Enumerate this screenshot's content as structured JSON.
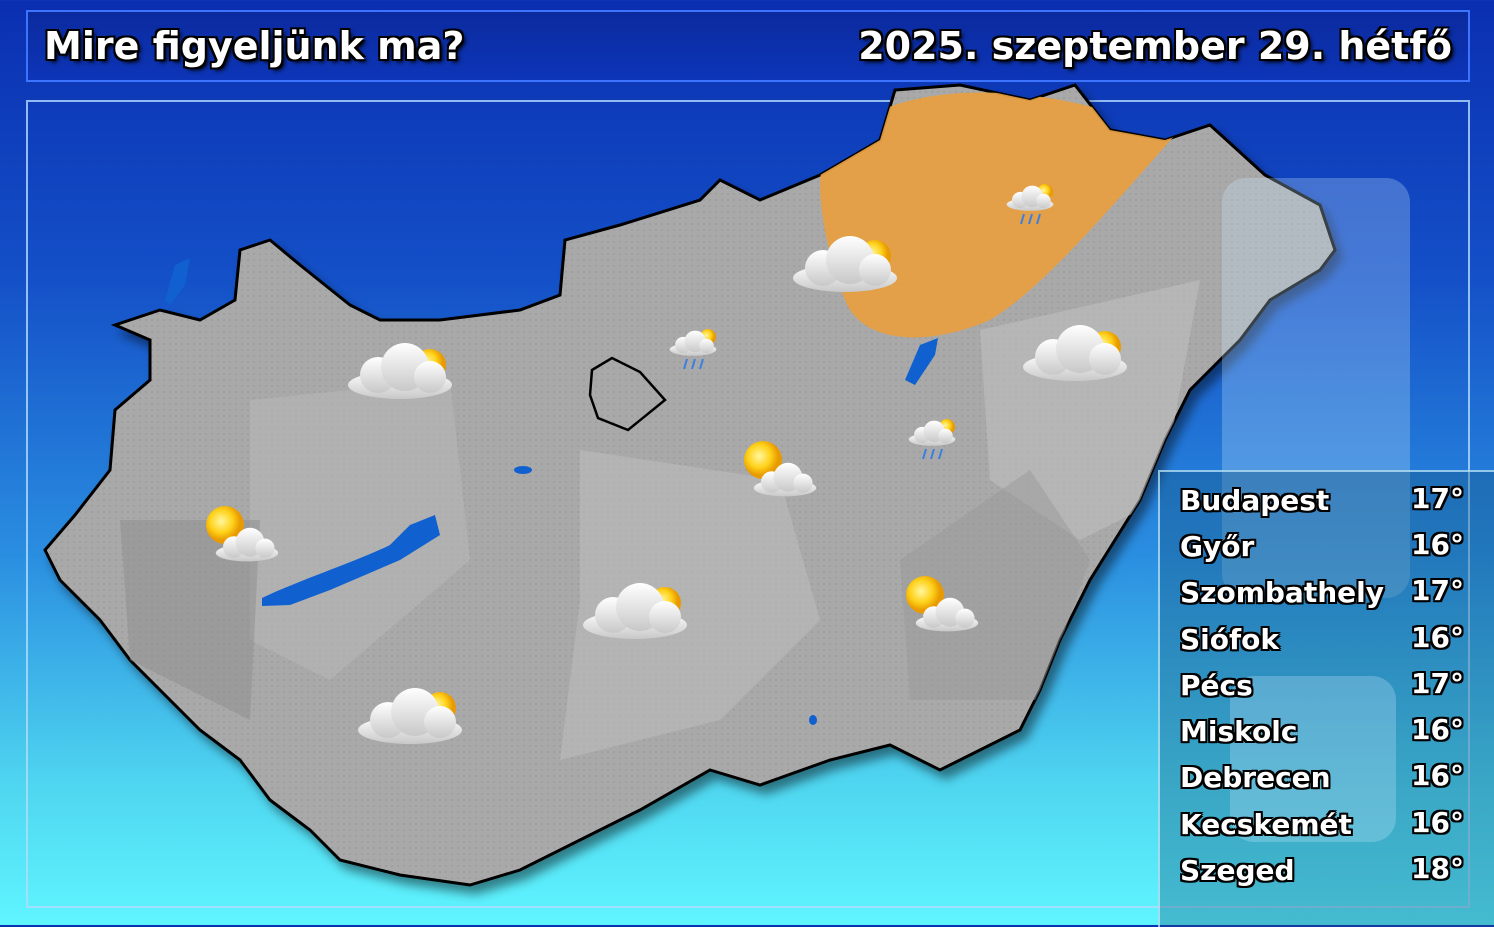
{
  "header": {
    "title": "Mire figyeljünk ma?",
    "date": "2025. szeptember 29. hétfő"
  },
  "colors": {
    "warning_area": "#e8a040",
    "lake": "#1060d0",
    "land": "#a8a8a8"
  },
  "map": {
    "warning_region": "northeast (Borsod / Miskolc area)",
    "icons": [
      {
        "name": "partly-cloudy-icon"
      },
      {
        "name": "sun-cloud-icon"
      },
      {
        "name": "partly-cloudy-icon"
      },
      {
        "name": "partly-cloudy-icon"
      },
      {
        "name": "sun-cloud-icon"
      },
      {
        "name": "sun-cloud-icon"
      },
      {
        "name": "partly-cloudy-icon"
      },
      {
        "name": "partly-cloudy-icon"
      },
      {
        "name": "rain-icon"
      },
      {
        "name": "rain-icon"
      },
      {
        "name": "rain-icon"
      }
    ]
  },
  "cities": [
    {
      "name": "Budapest",
      "temp": "17°"
    },
    {
      "name": "Győr",
      "temp": "16°"
    },
    {
      "name": "Szombathely",
      "temp": "17°"
    },
    {
      "name": "Siófok",
      "temp": "16°"
    },
    {
      "name": "Pécs",
      "temp": "17°"
    },
    {
      "name": "Miskolc",
      "temp": "16°"
    },
    {
      "name": "Debrecen",
      "temp": "16°"
    },
    {
      "name": "Kecskemét",
      "temp": "16°"
    },
    {
      "name": "Szeged",
      "temp": "18°"
    }
  ]
}
